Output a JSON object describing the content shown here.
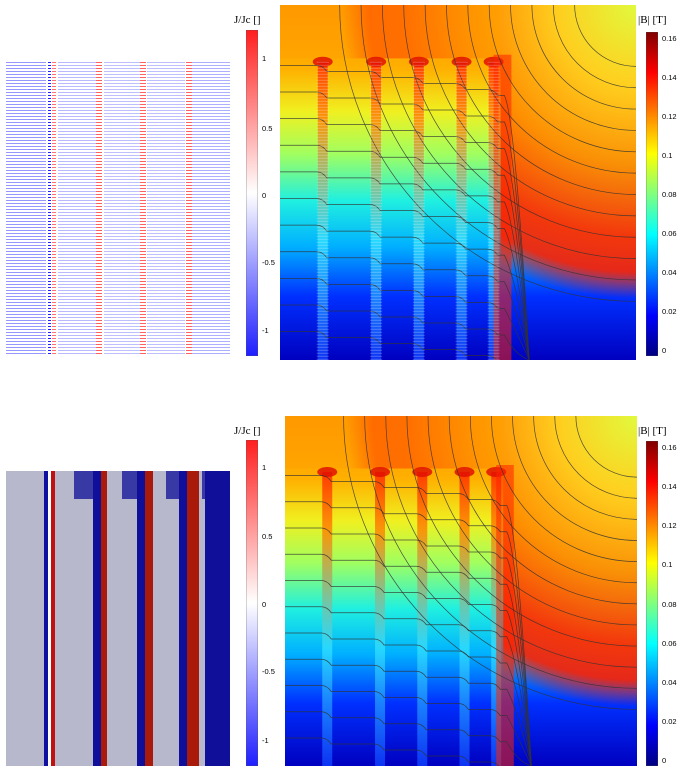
{
  "colors": {
    "jet": [
      "#00007f",
      "#0000ff",
      "#007fff",
      "#00ffff",
      "#7fff7f",
      "#ffff00",
      "#ff7f00",
      "#ff0000",
      "#7f0000"
    ],
    "current_map": [
      "#2020ff",
      "#ffffff",
      "#ff1e1e"
    ],
    "deep_negative": "#0f0f99",
    "positive_red": "#aa1a0a",
    "neutral_grey": "#b8b8cc"
  },
  "top": {
    "current_colorbar": {
      "label": "J/Jc []",
      "ticks": [
        "1",
        "0.5",
        "0",
        "-0.5",
        "-1"
      ]
    },
    "field_colorbar": {
      "label": "|B| [T]",
      "ticks": [
        "0.16",
        "0.14",
        "0.12",
        "0.1",
        "0.08",
        "0.06",
        "0.04",
        "0.02",
        "0"
      ]
    }
  },
  "bottom": {
    "current_colorbar": {
      "label": "J/Jc []",
      "ticks": [
        "1",
        "0.5",
        "0",
        "-0.5",
        "-1"
      ]
    },
    "field_colorbar": {
      "label": "|B| [T]",
      "ticks": [
        "0.16",
        "0.14",
        "0.12",
        "0.1",
        "0.08",
        "0.06",
        "0.04",
        "0.02",
        "0"
      ]
    }
  }
}
